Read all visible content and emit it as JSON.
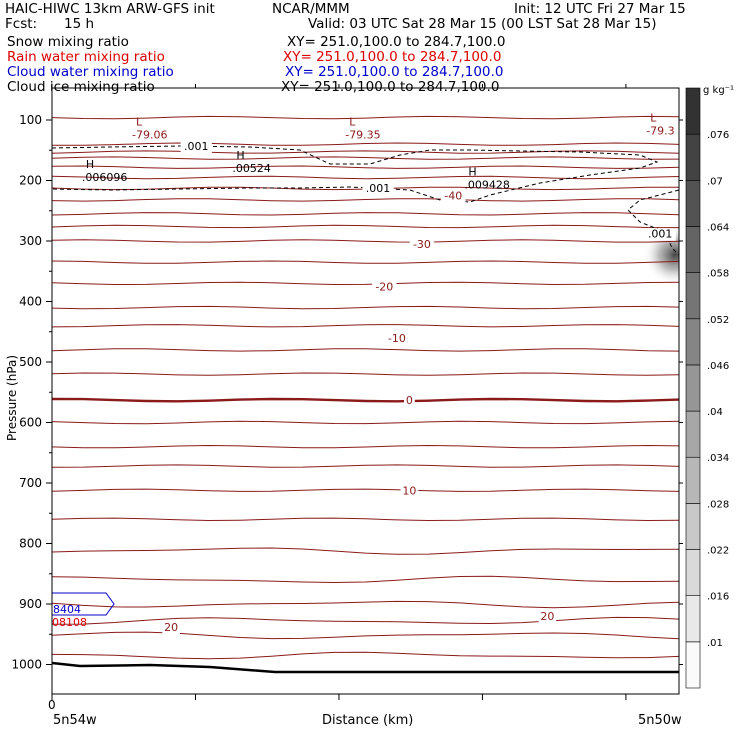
{
  "header": {
    "title": "HAIC-HIWC 13km ARW-GFS init",
    "org": "NCAR/MMM",
    "init": "Init: 12 UTC Fri 27 Mar 15",
    "fcst_label": "Fcst:",
    "fcst_value": "15 h",
    "valid": "Valid: 03 UTC Sat 28 Mar 15 (00 LST Sat 28 Mar 15)"
  },
  "fields": [
    {
      "name": "Snow mixing ratio",
      "xy": "XY= 251.0,100.0 to 284.7,100.0",
      "color": "#000000"
    },
    {
      "name": "Rain water mixing ratio",
      "xy": "XY= 251.0,100.0 to 284.7,100.0",
      "color": "#dd0000"
    },
    {
      "name": "Cloud water mixing ratio",
      "xy": "XY= 251.0,100.0 to 284.7,100.0",
      "color": "#0000cc"
    },
    {
      "name": "Cloud ice mixing ratio",
      "xy": "XY= 251.0,100.0 to 284.7,100.0",
      "color": "#000000"
    }
  ],
  "chart_data": {
    "type": "contour",
    "xlabel": "Distance (km)",
    "ylabel": "Pressure (hPa)",
    "x_start_label": "0",
    "x_left_label": "5n54w",
    "x_right_label": "5n50w",
    "y_ticks": [
      100,
      200,
      300,
      400,
      500,
      600,
      700,
      800,
      900,
      1000
    ],
    "ylim": [
      1050,
      65
    ],
    "colorbar": {
      "unit": "g kg⁻¹",
      "ticks": [
        ".01",
        ".016",
        ".022",
        ".028",
        ".034",
        ".04",
        ".046",
        ".052",
        ".058",
        ".064",
        ".07",
        ".076"
      ]
    },
    "temperature_labels": [
      {
        "text": "-40",
        "x": 0.64,
        "p": 225
      },
      {
        "text": "-30",
        "x": 0.59,
        "p": 305
      },
      {
        "text": "-20",
        "x": 0.53,
        "p": 375
      },
      {
        "text": "-10",
        "x": 0.55,
        "p": 460
      },
      {
        "text": "0",
        "x": 0.57,
        "p": 563
      },
      {
        "text": "10",
        "x": 0.57,
        "p": 712
      },
      {
        "text": "20",
        "x": 0.19,
        "p": 938
      },
      {
        "text": "20",
        "x": 0.79,
        "p": 920
      }
    ],
    "extrema": [
      {
        "kind": "L",
        "value": "-79.06",
        "x": 0.15,
        "p": 112
      },
      {
        "kind": "L",
        "value": "-79.35",
        "x": 0.49,
        "p": 112
      },
      {
        "kind": "L",
        "value": "-79.3",
        "x": 0.97,
        "p": 106
      },
      {
        "kind": "H",
        "value": ".006096",
        "x": 0.07,
        "p": 183
      },
      {
        "kind": "H",
        "value": ".00524",
        "x": 0.31,
        "p": 168
      },
      {
        "kind": "H",
        "value": ".009428",
        "x": 0.68,
        "p": 195
      }
    ],
    "ice_contour_labels": [
      {
        "text": ".001",
        "x": 0.23,
        "p": 143
      },
      {
        "text": ".001",
        "x": 0.52,
        "p": 212
      },
      {
        "text": ".001",
        "x": 0.97,
        "p": 288
      }
    ],
    "cloud_water_label": {
      "text": "8404",
      "x": 0.02,
      "p": 908
    },
    "rain_label": {
      "text": "08108",
      "x": 0.02,
      "p": 930
    }
  }
}
